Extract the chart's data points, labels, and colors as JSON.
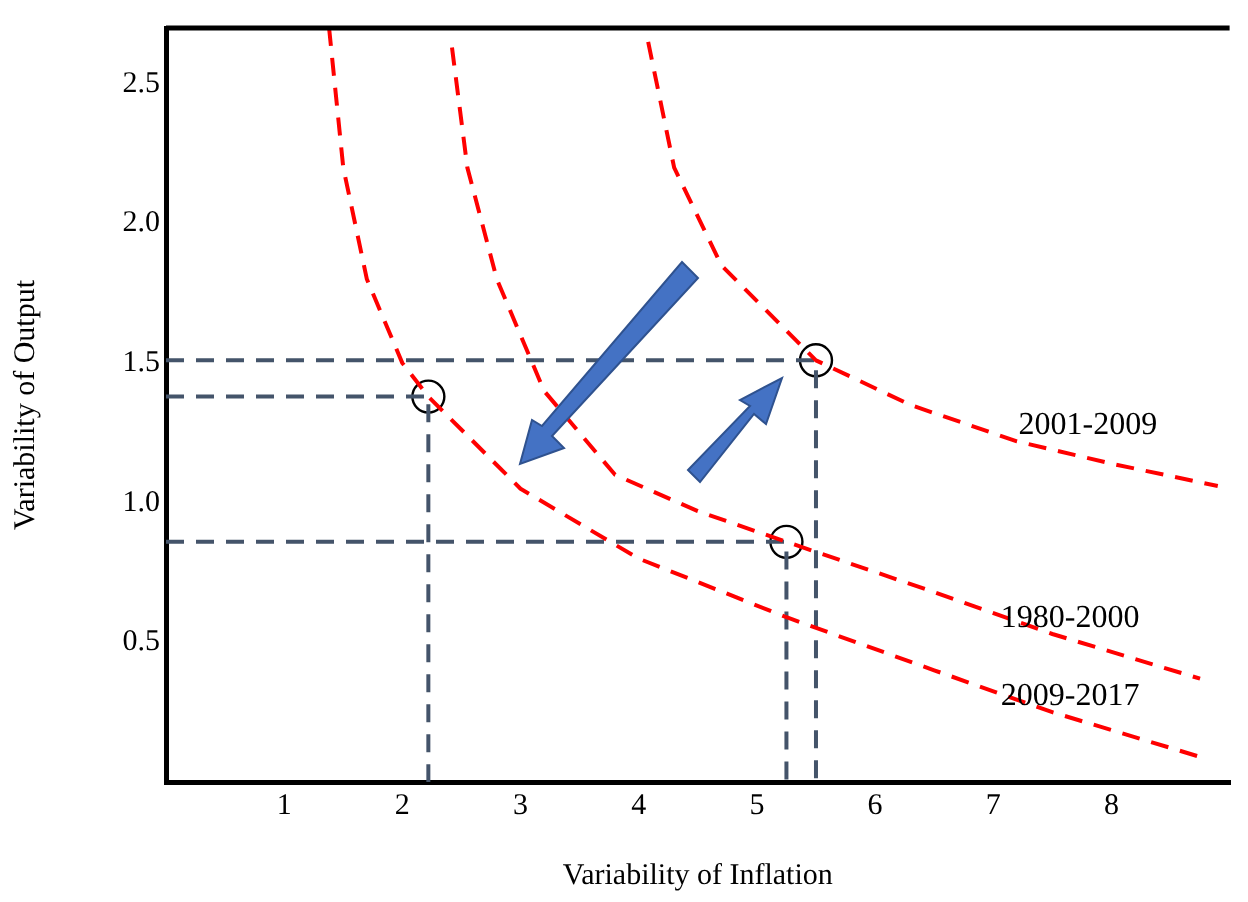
{
  "chart_data": {
    "type": "line",
    "xlabel": "Variability of Inflation",
    "ylabel": "Variability of Output",
    "xlim": [
      0,
      9
    ],
    "xticks": [
      1,
      2,
      3,
      4,
      5,
      6,
      7,
      8
    ],
    "ylim": [
      0,
      2.7
    ],
    "yticks": [
      {
        "value": 0.5,
        "label": "0.5"
      },
      {
        "value": 1,
        "label": "1.0"
      },
      {
        "value": 1.5,
        "label": "1.5"
      },
      {
        "value": 2,
        "label": "2.0"
      },
      {
        "value": 2.5,
        "label": "2.5"
      }
    ],
    "grid": false,
    "legend": false,
    "series": [
      {
        "name": "2009-2017",
        "line_style": "dashed",
        "color": "#ff0000",
        "x": [
          1.38,
          1.5,
          1.7,
          2.0,
          2.22,
          3,
          4,
          5.25,
          6.5,
          7.5,
          8.75
        ],
        "values": [
          2.7,
          2.2,
          1.8,
          1.5,
          1.38,
          1.05,
          0.8,
          0.59,
          0.4,
          0.25,
          0.09
        ]
      },
      {
        "name": "1980-2000",
        "line_style": "dashed",
        "color": "#ff0000",
        "x": [
          2.42,
          2.55,
          2.8,
          3.2,
          3.8,
          4.5,
          5.25,
          6.5,
          7.5,
          8.75
        ],
        "values": [
          2.63,
          2.2,
          1.8,
          1.4,
          1.1,
          0.97,
          0.86,
          0.68,
          0.53,
          0.37
        ]
      },
      {
        "name": "2001-2009",
        "line_style": "dashed",
        "color": "#ff0000",
        "x": [
          4.08,
          4.3,
          4.7,
          5.5,
          6.3,
          7.2,
          8.0,
          8.9
        ],
        "values": [
          2.65,
          2.2,
          1.85,
          1.51,
          1.35,
          1.22,
          1.14,
          1.06
        ]
      },
      {
        "line_style": "dashed",
        "color": "#44546a",
        "x": [
          0,
          2.22,
          2.22
        ],
        "values": [
          1.38,
          1.38,
          0
        ]
      },
      {
        "line_style": "dashed",
        "color": "#44546a",
        "x": [
          0,
          5.25,
          5.25
        ],
        "values": [
          0.86,
          0.86,
          0
        ]
      },
      {
        "line_style": "dashed",
        "color": "#44546a",
        "x": [
          0,
          5.5,
          5.5
        ],
        "values": [
          1.51,
          1.51,
          0
        ]
      },
      {
        "type": "scatter",
        "marker": "circle",
        "color": "#000000",
        "x": [
          2.22,
          5.25,
          5.5
        ],
        "values": [
          1.38,
          0.86,
          1.51
        ]
      }
    ]
  }
}
